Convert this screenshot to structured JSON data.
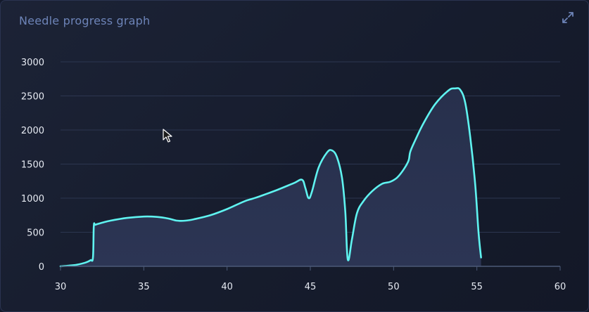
{
  "panel": {
    "title": "Needle progress graph",
    "expand_icon": "expand-icon"
  },
  "colors": {
    "line": "#5ff3f0",
    "area": "#27304c",
    "grid": "#2c3650",
    "axis": "#4c5a78",
    "title": "#6d84b8",
    "tick_text": "#e6eaf2"
  },
  "chart_data": {
    "type": "area",
    "title": "",
    "xlabel": "",
    "ylabel": "",
    "xlim": [
      30,
      60
    ],
    "ylim": [
      0,
      3000
    ],
    "xticks": [
      30,
      35,
      40,
      45,
      50,
      55,
      60
    ],
    "yticks": [
      0,
      500,
      1000,
      1500,
      2000,
      2500,
      3000
    ],
    "grid": true,
    "legend": "none",
    "series": [
      {
        "x": [
          30,
          30.5,
          31,
          31.5,
          31.8,
          31.95,
          32.0,
          32.1,
          32.5,
          33,
          34,
          35,
          35.8,
          36.5,
          37,
          37.5,
          38,
          39,
          40,
          41,
          41.5,
          42,
          43,
          44,
          44.5,
          44.7,
          44.9,
          45.1,
          45.5,
          46,
          46.3,
          46.6,
          46.9,
          47.1,
          47.25,
          47.5,
          47.8,
          48.2,
          48.7,
          49.3,
          49.8,
          50.2,
          50.6,
          50.9,
          51.0,
          51.3,
          51.8,
          52.5,
          53.3,
          53.7,
          54.0,
          54.3,
          54.6,
          54.9,
          55.1,
          55.25
        ],
        "y": [
          0,
          10,
          25,
          55,
          90,
          130,
          590,
          610,
          640,
          670,
          710,
          730,
          725,
          700,
          670,
          670,
          690,
          750,
          840,
          950,
          990,
          1030,
          1120,
          1220,
          1270,
          1150,
          1000,
          1100,
          1450,
          1670,
          1700,
          1600,
          1300,
          800,
          100,
          400,
          780,
          960,
          1100,
          1210,
          1240,
          1300,
          1420,
          1550,
          1680,
          1850,
          2100,
          2380,
          2580,
          2610,
          2590,
          2400,
          1900,
          1200,
          500,
          130
        ]
      }
    ]
  }
}
